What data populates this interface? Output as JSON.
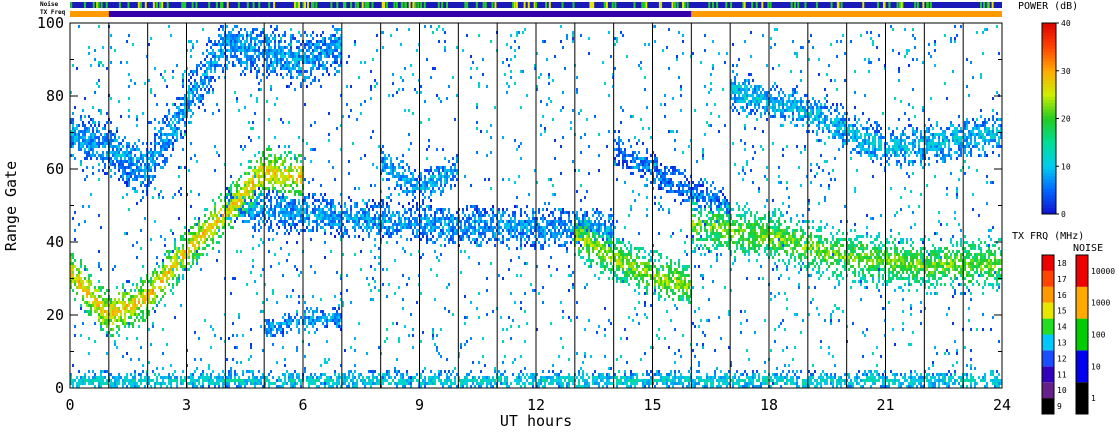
{
  "chart_data": {
    "type": "heatmap",
    "xlabel": "UT hours",
    "ylabel": "Range Gate",
    "xlim": [
      0,
      24
    ],
    "ylim": [
      0,
      100
    ],
    "x_ticks": [
      "0",
      "3",
      "6",
      "9",
      "12",
      "15",
      "18",
      "21",
      "24"
    ],
    "y_ticks": [
      "0",
      "20",
      "40",
      "60",
      "80",
      "100"
    ],
    "hour_markers": [
      1,
      2,
      3,
      4,
      5,
      6,
      7,
      8,
      9,
      10,
      11,
      12,
      13,
      14,
      15,
      16,
      17,
      18,
      19,
      20,
      21,
      22,
      23
    ],
    "strip_labels": {
      "noise": "Noise",
      "txfreq": "TX Freq"
    },
    "tx_freq_strip": [
      {
        "start": 0,
        "end": 1,
        "color": "#ff9900"
      },
      {
        "start": 1,
        "end": 16,
        "color": "#3300aa"
      },
      {
        "start": 16,
        "end": 24,
        "color": "#ff9900"
      }
    ],
    "power_colorbar": {
      "title": "POWER (dB)",
      "ticks": [
        "0",
        "10",
        "20",
        "30",
        "40"
      ],
      "range": [
        0,
        40
      ]
    },
    "txfreq_colorbar": {
      "title": "TX FRQ (MHz)",
      "ticks": [
        "9",
        "10",
        "11",
        "12",
        "13",
        "14",
        "15",
        "16",
        "17",
        "18"
      ],
      "colors": [
        "#000000",
        "#66208a",
        "#3300bb",
        "#1a4dff",
        "#00c8ff",
        "#22dd22",
        "#e6e600",
        "#ff9900",
        "#ff4400",
        "#ee0000"
      ]
    },
    "noise_colorbar": {
      "title": "NOISE",
      "ticks": [
        "1",
        "10",
        "100",
        "1000",
        "10000"
      ],
      "colors": [
        "#000000",
        "#0000ee",
        "#00cc00",
        "#ffaa00",
        "#ee0000"
      ]
    },
    "echo_bands": [
      {
        "name": "F-region band",
        "points": [
          [
            0,
            32
          ],
          [
            1,
            20
          ],
          [
            2,
            25
          ],
          [
            3,
            38
          ],
          [
            4,
            48
          ],
          [
            5,
            60
          ],
          [
            6,
            58
          ]
        ],
        "power": 28,
        "width": 7
      },
      {
        "name": "high band",
        "points": [
          [
            0,
            70
          ],
          [
            1,
            66
          ],
          [
            2,
            60
          ],
          [
            3,
            78
          ],
          [
            4,
            95
          ],
          [
            6,
            90
          ],
          [
            7,
            95
          ]
        ],
        "power": 8,
        "width": 8
      },
      {
        "name": "mid band",
        "points": [
          [
            4,
            50
          ],
          [
            6,
            48
          ],
          [
            9,
            45
          ],
          [
            12,
            44
          ],
          [
            14,
            44
          ]
        ],
        "power": 8,
        "width": 6
      },
      {
        "name": "low patch",
        "points": [
          [
            5,
            16
          ],
          [
            6,
            19
          ],
          [
            7,
            19
          ]
        ],
        "power": 8,
        "width": 3
      },
      {
        "name": "descending band",
        "points": [
          [
            13,
            42
          ],
          [
            14,
            36
          ],
          [
            15,
            31
          ],
          [
            16,
            28
          ]
        ],
        "power": 24,
        "width": 7
      },
      {
        "name": "loop",
        "points": [
          [
            8,
            62
          ],
          [
            9,
            55
          ],
          [
            10,
            60
          ]
        ],
        "power": 9,
        "width": 5
      },
      {
        "name": "upper mid",
        "points": [
          [
            14,
            66
          ],
          [
            15,
            60
          ],
          [
            16,
            54
          ],
          [
            17,
            50
          ]
        ],
        "power": 6,
        "width": 5
      },
      {
        "name": "late band",
        "points": [
          [
            16,
            45
          ],
          [
            18,
            42
          ],
          [
            20,
            36
          ],
          [
            22,
            34
          ],
          [
            24,
            34
          ]
        ],
        "power": 22,
        "width": 8
      },
      {
        "name": "late upper",
        "points": [
          [
            17,
            82
          ],
          [
            19,
            76
          ],
          [
            21,
            66
          ],
          [
            24,
            70
          ]
        ],
        "power": 10,
        "width": 6
      },
      {
        "name": "ground",
        "points": [
          [
            0,
            2
          ],
          [
            24,
            2
          ]
        ],
        "power": 12,
        "width": 3
      }
    ]
  }
}
